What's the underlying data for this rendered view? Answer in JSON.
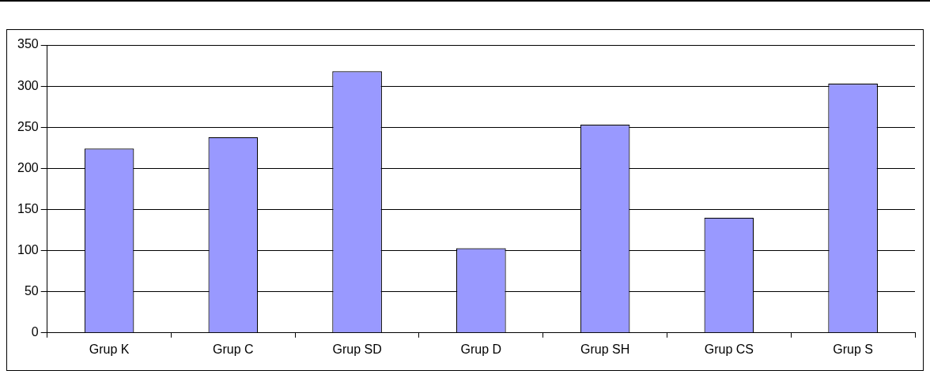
{
  "chart_data": {
    "type": "bar",
    "categories": [
      "Grup K",
      "Grup C",
      "Grup SD",
      "Grup D",
      "Grup SH",
      "Grup CS",
      "Grup S"
    ],
    "values": [
      224,
      238,
      318,
      103,
      253,
      140,
      303
    ],
    "color": "#9999ff",
    "ylim": [
      0,
      350
    ],
    "yticks": [
      0,
      50,
      100,
      150,
      200,
      250,
      300,
      350
    ],
    "grid": "y",
    "legend": false
  }
}
